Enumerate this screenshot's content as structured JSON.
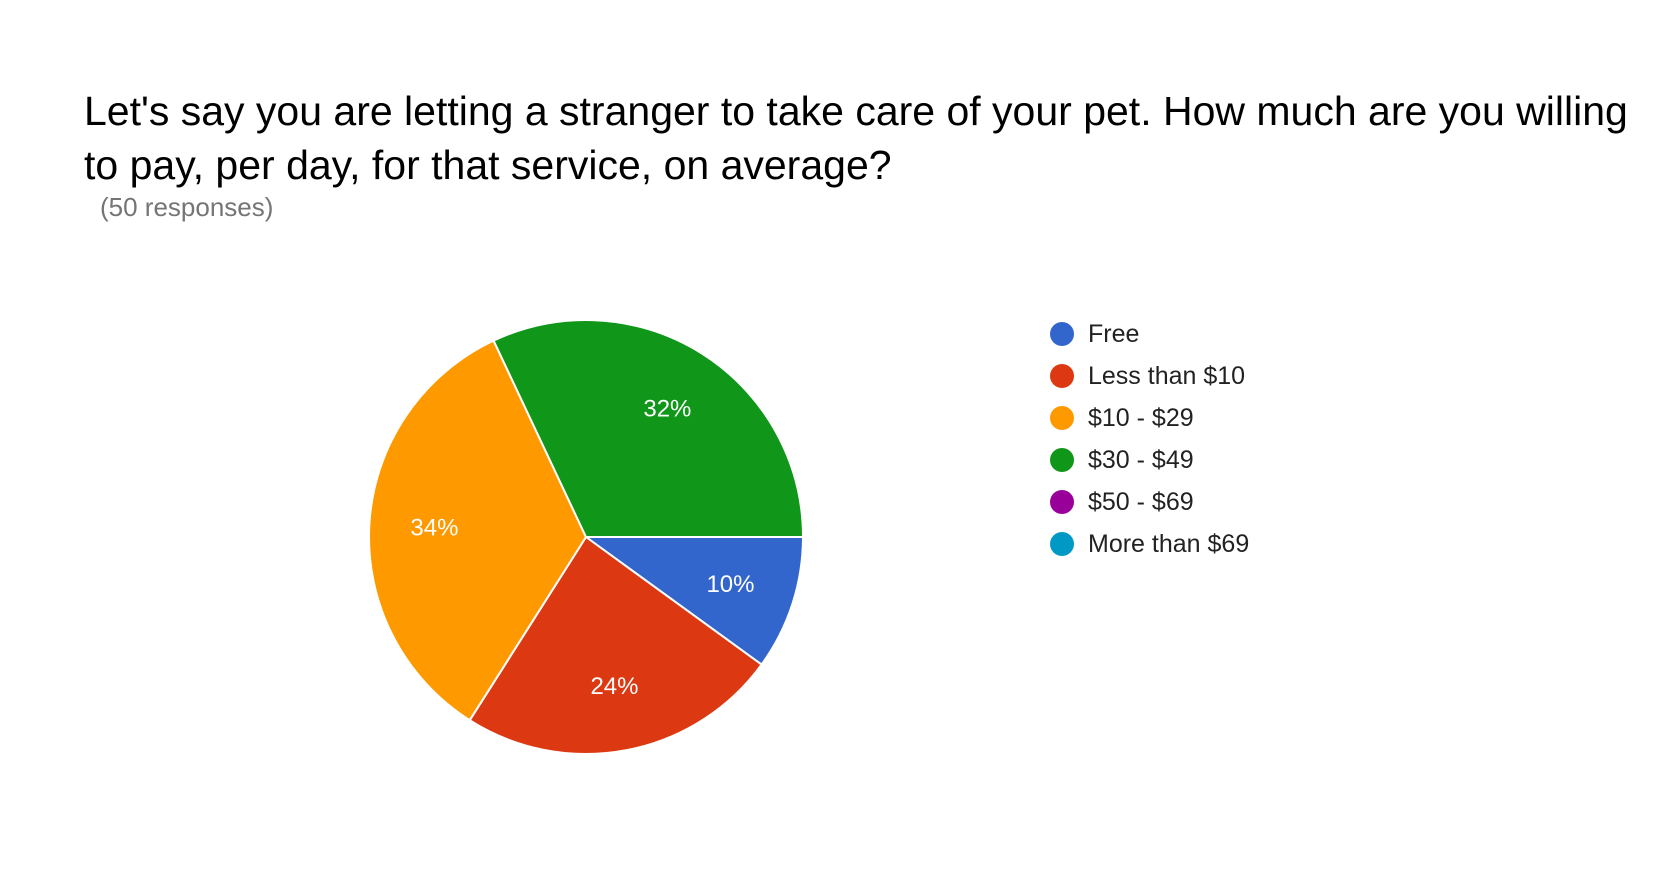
{
  "header": {
    "title": "Let's say you are letting a stranger to take care of your pet. How much are you willing to pay, per day, for that service, on average?",
    "responses": "(50 responses)"
  },
  "chart_data": {
    "type": "pie",
    "categories": [
      "Free",
      "Less than $10",
      "$10 - $29",
      "$30 - $49",
      "$50 - $69",
      "More than $69"
    ],
    "values": [
      10,
      24,
      34,
      32,
      0,
      0
    ],
    "data_labels": [
      "10%",
      "24%",
      "34%",
      "32%",
      "",
      ""
    ],
    "colors": [
      "#3366cc",
      "#dc3912",
      "#ff9900",
      "#109618",
      "#990099",
      "#0099c6"
    ],
    "legend_position": "right"
  }
}
